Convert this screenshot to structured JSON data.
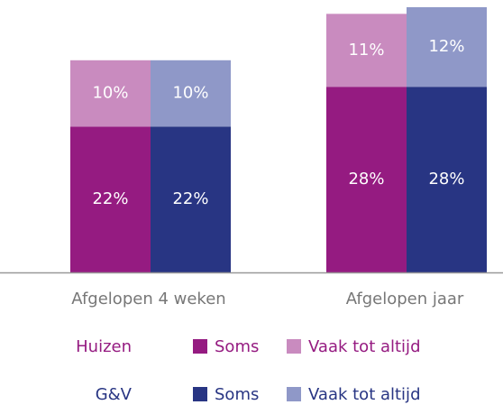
{
  "chart_data": {
    "type": "grouped-stacked-bar",
    "categories": [
      "Afgelopen 4 weken",
      "Afgelopen jaar"
    ],
    "stacks": [
      {
        "name": "Huizen",
        "color": "#951b81",
        "series": [
          {
            "name": "Soms",
            "color": "#951b81",
            "values": [
              22,
              28
            ],
            "value_labels": [
              "22%",
              "28%"
            ]
          },
          {
            "name": "Vaak tot altijd",
            "color": "#c98bbf",
            "values": [
              10,
              11
            ],
            "value_labels": [
              "10%",
              "11%"
            ]
          }
        ]
      },
      {
        "name": "G&V",
        "color": "#283583",
        "series": [
          {
            "name": "Soms",
            "color": "#283583",
            "values": [
              22,
              28
            ],
            "value_labels": [
              "22%",
              "28%"
            ]
          },
          {
            "name": "Vaak tot altijd",
            "color": "#8f98c8",
            "values": [
              10,
              12
            ],
            "value_labels": [
              "10%",
              "12%"
            ]
          }
        ]
      }
    ]
  }
}
